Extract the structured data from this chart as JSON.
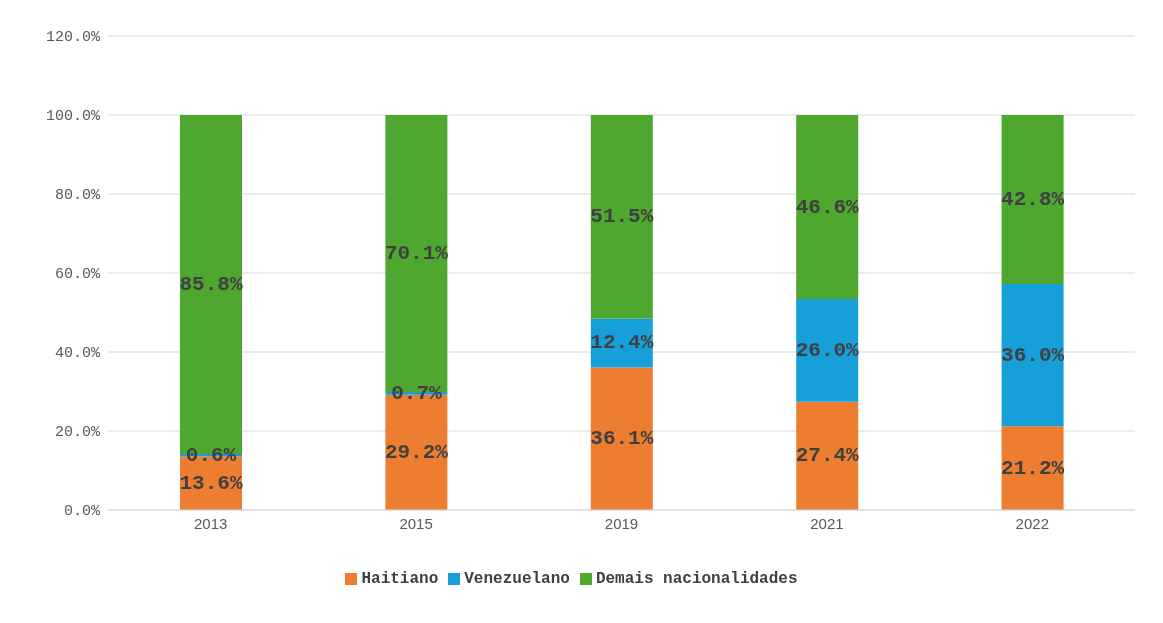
{
  "chart_data": {
    "type": "bar",
    "stacked": true,
    "categories": [
      "2013",
      "2015",
      "2019",
      "2021",
      "2022"
    ],
    "series": [
      {
        "name": "Haitiano",
        "color": "#ed7d31",
        "values": [
          13.6,
          29.2,
          36.1,
          27.4,
          21.2
        ],
        "value_labels": [
          "13.6%",
          "29.2%",
          "36.1%",
          "27.4%",
          "21.2%"
        ]
      },
      {
        "name": "Venezuelano",
        "color": "#169fd8",
        "values": [
          0.6,
          0.7,
          12.4,
          26.0,
          36.0
        ],
        "value_labels": [
          "0.6%",
          "0.7%",
          "12.4%",
          "26.0%",
          "36.0%"
        ]
      },
      {
        "name": "Demais nacionalidades",
        "color": "#4ea72e",
        "values": [
          85.8,
          70.1,
          51.5,
          46.6,
          42.8
        ],
        "value_labels": [
          "85.8%",
          "70.1%",
          "51.5%",
          "46.6%",
          "42.8%"
        ]
      }
    ],
    "ylim": [
      0,
      120
    ],
    "yticks": [
      {
        "value": 0,
        "label": "0.0%"
      },
      {
        "value": 20,
        "label": "20.0%"
      },
      {
        "value": 40,
        "label": "40.0%"
      },
      {
        "value": 60,
        "label": "60.0%"
      },
      {
        "value": 80,
        "label": "80.0%"
      },
      {
        "value": 100,
        "label": "100.0%"
      },
      {
        "value": 120,
        "label": "120.0%"
      }
    ],
    "grid": "y",
    "legend": "bottom"
  }
}
